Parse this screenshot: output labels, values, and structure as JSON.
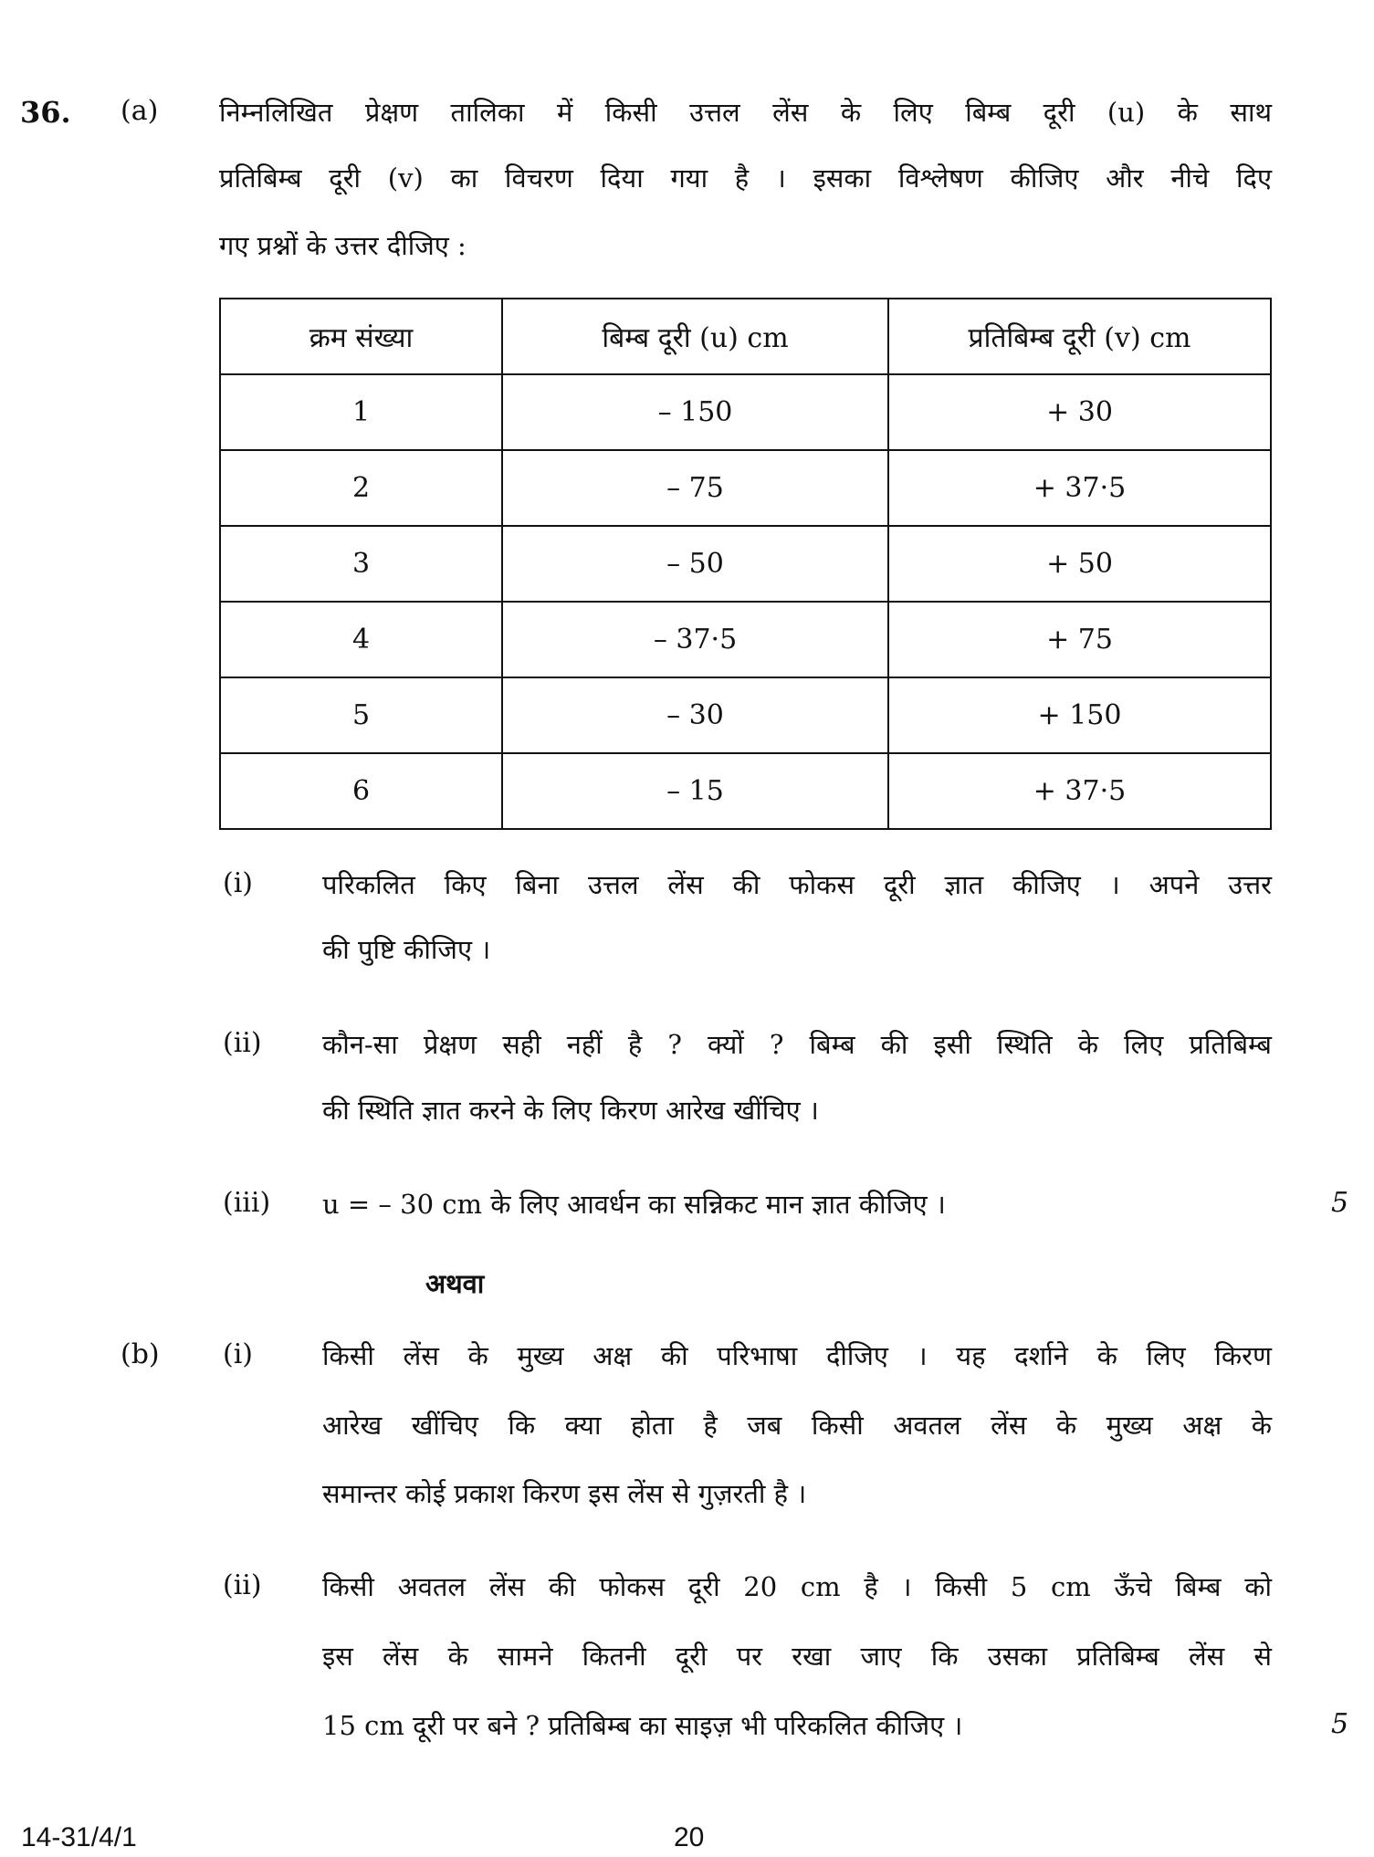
{
  "question": {
    "number": "36.",
    "part_a": {
      "label": "(a)",
      "intro_lines": [
        "निम्नलिखित प्रेक्षण तालिका में किसी उत्तल लेंस के लिए बिम्ब दूरी (u) के साथ",
        "प्रतिबिम्ब दूरी (v) का विचरण दिया गया है । इसका विश्लेषण कीजिए और नीचे दिए",
        "गए प्रश्नों के उत्तर दीजिए :"
      ],
      "table": {
        "headers": [
          "क्रम संख्या",
          "बिम्ब दूरी (u) cm",
          "प्रतिबिम्ब दूरी (v) cm"
        ],
        "rows": [
          [
            "1",
            "– 150",
            "+ 30"
          ],
          [
            "2",
            "– 75",
            "+ 37·5"
          ],
          [
            "3",
            "– 50",
            "+ 50"
          ],
          [
            "4",
            "– 37·5",
            "+ 75"
          ],
          [
            "5",
            "– 30",
            "+ 150"
          ],
          [
            "6",
            "– 15",
            "+ 37·5"
          ]
        ]
      },
      "subparts": [
        {
          "label": "(i)",
          "lines": [
            "परिकलित किए बिना उत्तल लेंस की फोकस दूरी ज्ञात कीजिए । अपने उत्तर",
            "की पुष्टि कीजिए ।"
          ]
        },
        {
          "label": "(ii)",
          "lines": [
            "कौन-सा प्रेक्षण सही नहीं है ? क्यों ? बिम्ब की इसी स्थिति के लिए प्रतिबिम्ब",
            "की स्थिति ज्ञात करने के लिए किरण आरेख खींचिए ।"
          ]
        },
        {
          "label": "(iii)",
          "lines": [
            "u = – 30 cm के लिए आवर्धन का सन्निकट मान ज्ञात कीजिए ।"
          ]
        }
      ],
      "marks": "5"
    },
    "or_label": "अथवा",
    "part_b": {
      "label": "(b)",
      "subparts": [
        {
          "label": "(i)",
          "lines": [
            "किसी लेंस के मुख्य अक्ष की परिभाषा दीजिए । यह दर्शाने के लिए किरण",
            "आरेख खींचिए कि क्या होता है जब किसी अवतल लेंस के मुख्य अक्ष के",
            "समान्तर कोई प्रकाश किरण इस लेंस से गुज़रती है ।"
          ]
        },
        {
          "label": "(ii)",
          "lines": [
            "किसी अवतल लेंस की फोकस दूरी 20 cm है । किसी 5 cm ऊँचे बिम्ब को",
            "इस लेंस के सामने कितनी दूरी पर रखा जाए कि उसका प्रतिबिम्ब लेंस से",
            "15 cm दूरी पर बने ? प्रतिबिम्ब का साइज़ भी परिकलित कीजिए ।"
          ]
        }
      ],
      "marks": "5"
    }
  },
  "footer": {
    "code": "14-31/4/1",
    "page": "20"
  }
}
